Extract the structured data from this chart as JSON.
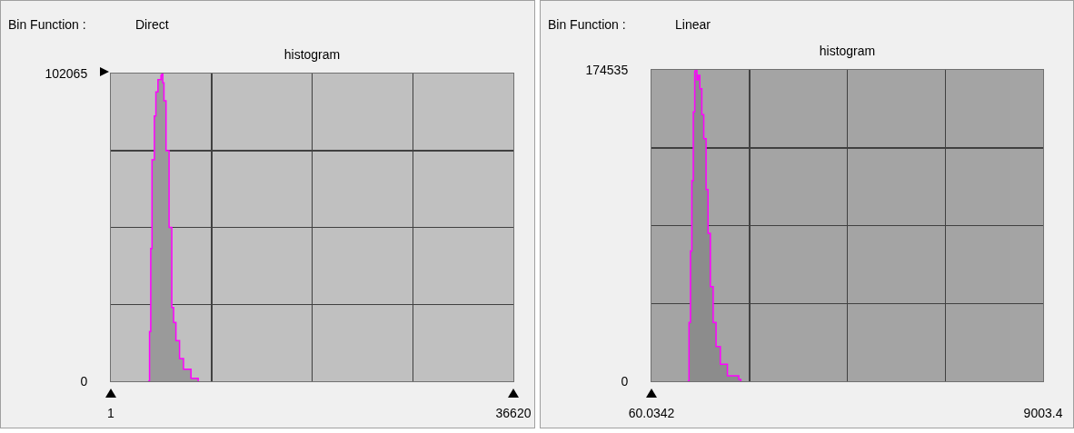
{
  "chart_data": [
    {
      "type": "area",
      "title": "histogram",
      "annotations": [
        "Bin Function :",
        "Direct"
      ],
      "series": [
        {
          "color": "#9a9a9a",
          "x": [
            3384,
            3520,
            3630,
            3745,
            3958,
            4097,
            4285,
            4563,
            4645,
            4727,
            4834,
            5022,
            5300,
            5546,
            5710,
            5923,
            6251,
            6611,
            7292,
            7947
          ],
          "values": [
            0,
            16500,
            44000,
            73500,
            88000,
            96000,
            100000,
            101500,
            102065,
            99000,
            93000,
            76500,
            51000,
            24500,
            19500,
            13500,
            7500,
            4000,
            1000,
            0
          ]
        }
      ],
      "xlim": [
        1,
        36620
      ],
      "xticks": [
        1,
        {
          "value": 9155.75,
          "label": null
        },
        {
          "value": 18310.5,
          "label": null
        },
        {
          "value": 27465.25,
          "label": null
        },
        36620
      ],
      "ylim": [
        0,
        102065
      ],
      "yticks": [
        0,
        {
          "value": 25516.25,
          "label": null
        },
        {
          "value": 51032.5,
          "label": null
        },
        {
          "value": 76548.75,
          "label": null
        },
        102065
      ],
      "grid": true
    },
    {
      "type": "area",
      "title": "histogram",
      "annotations": [
        "Bin Function :",
        "Linear"
      ],
      "series": [
        {
          "color": "#8c8c8c",
          "x": [
            884,
            917,
            950,
            982,
            1015,
            1048,
            1060,
            1098,
            1126,
            1165,
            1210,
            1254,
            1307,
            1352,
            1404,
            1469,
            1535,
            1632,
            1794,
            2053,
            2100
          ],
          "values": [
            0,
            33000,
            73000,
            112500,
            151000,
            173500,
            174535,
            169000,
            171500,
            164000,
            149500,
            136000,
            107500,
            83000,
            53000,
            33000,
            19500,
            9500,
            3000,
            1000,
            0
          ]
        }
      ],
      "xlim": [
        60.0342,
        9003.4
      ],
      "xticks": [
        60.0342,
        {
          "value": 2295.88,
          "label": null
        },
        {
          "value": 4531.72,
          "label": null
        },
        {
          "value": 6767.56,
          "label": null
        },
        9003.4
      ],
      "ylim": [
        0,
        174535
      ],
      "yticks": [
        0,
        {
          "value": 43633.75,
          "label": null
        },
        {
          "value": 87267.5,
          "label": null
        },
        {
          "value": 130901.25,
          "label": null
        },
        174535
      ],
      "grid": true
    }
  ]
}
